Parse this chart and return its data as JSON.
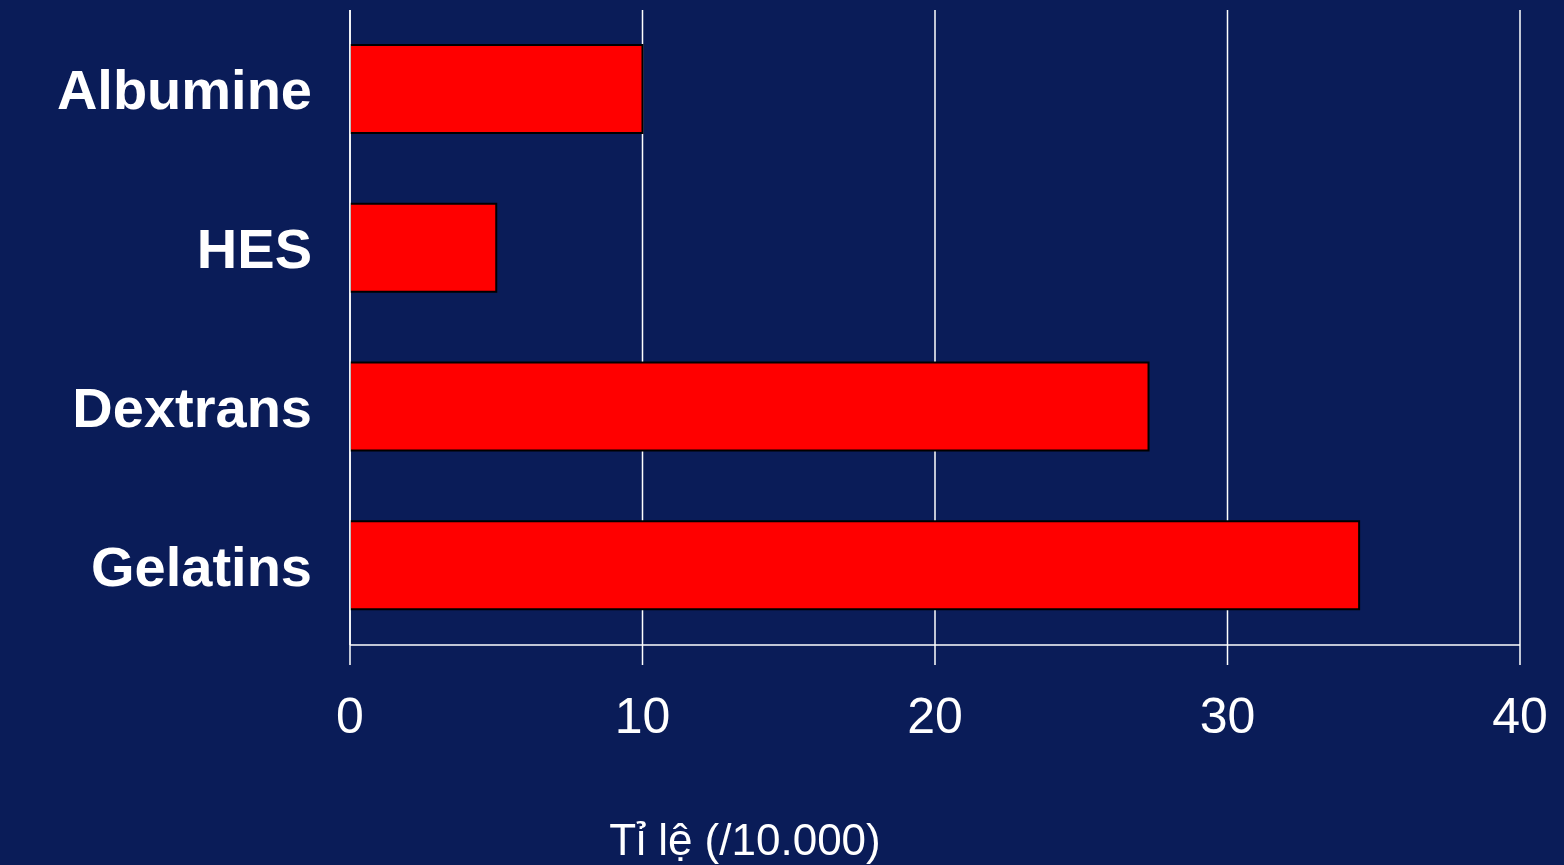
{
  "chart_data": {
    "type": "bar",
    "orientation": "horizontal",
    "xlabel": "Tỉ lệ (/10.000)",
    "categories": [
      "Albumine",
      "HES",
      "Dextrans",
      "Gelatins"
    ],
    "values": [
      10,
      5,
      27.3,
      34.5
    ],
    "color": "#ff0000",
    "xlim": [
      0,
      40
    ],
    "xticks": [
      0,
      10,
      20,
      30,
      40
    ],
    "grid": "x"
  }
}
